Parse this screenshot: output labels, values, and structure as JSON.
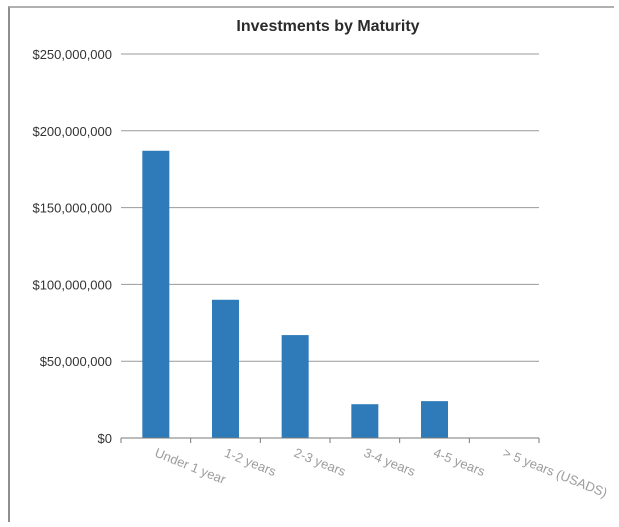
{
  "chart_data": {
    "type": "bar",
    "title": "Investments by Maturity",
    "xlabel": "",
    "ylabel": "",
    "categories": [
      "Under 1 year",
      "1-2 years",
      "2-3 years",
      "3-4 years",
      "4-5 years",
      "> 5 years (USADS)"
    ],
    "values": [
      187000000,
      90000000,
      67000000,
      22000000,
      24000000,
      0
    ],
    "ylim": [
      0,
      250000000
    ],
    "yticks": [
      "$0",
      "$50,000,000",
      "$100,000,000",
      "$150,000,000",
      "$200,000,000",
      "$250,000,000"
    ],
    "ytick_values": [
      0,
      50000000,
      100000000,
      150000000,
      200000000,
      250000000
    ],
    "grid": true,
    "legend": "none",
    "bar_color": "#2f7ab8",
    "grid_color": "#9a9a9a",
    "xtick_color": "#9c9c9c"
  }
}
